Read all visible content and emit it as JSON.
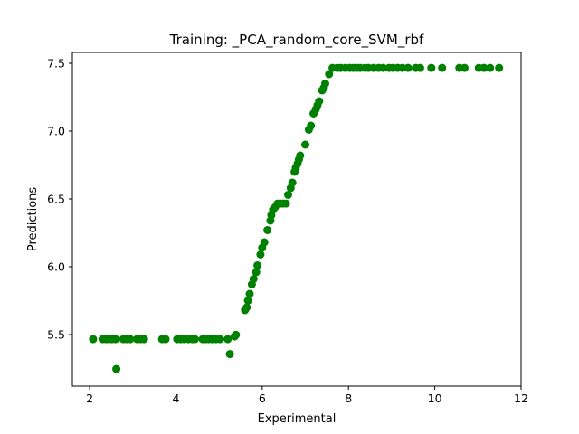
{
  "chart_data": {
    "type": "scatter",
    "title": "Training: _PCA_random_core_SVM_rbf",
    "xlabel": "Experimental",
    "ylabel": "Predictions",
    "xlim": [
      1.6,
      12.0
    ],
    "ylim": [
      5.12,
      7.58
    ],
    "xticks": [
      "2",
      "4",
      "6",
      "8",
      "10",
      "12"
    ],
    "yticks": [
      "5.5",
      "6.0",
      "6.5",
      "7.0",
      "7.5"
    ],
    "grid": false,
    "marker_color": "#008000",
    "series": [
      {
        "points": [
          [
            2.08,
            5.466
          ],
          [
            2.3,
            5.466
          ],
          [
            2.38,
            5.466
          ],
          [
            2.45,
            5.466
          ],
          [
            2.52,
            5.466
          ],
          [
            2.6,
            5.466
          ],
          [
            2.62,
            5.246
          ],
          [
            2.78,
            5.466
          ],
          [
            2.86,
            5.466
          ],
          [
            2.94,
            5.466
          ],
          [
            3.1,
            5.466
          ],
          [
            3.18,
            5.466
          ],
          [
            3.26,
            5.466
          ],
          [
            3.68,
            5.466
          ],
          [
            3.76,
            5.466
          ],
          [
            4.03,
            5.466
          ],
          [
            4.11,
            5.466
          ],
          [
            4.19,
            5.466
          ],
          [
            4.29,
            5.466
          ],
          [
            4.38,
            5.466
          ],
          [
            4.44,
            5.466
          ],
          [
            4.62,
            5.466
          ],
          [
            4.69,
            5.466
          ],
          [
            4.76,
            5.466
          ],
          [
            4.84,
            5.466
          ],
          [
            4.93,
            5.466
          ],
          [
            5.02,
            5.466
          ],
          [
            5.2,
            5.466
          ],
          [
            5.25,
            5.356
          ],
          [
            5.36,
            5.486
          ],
          [
            5.39,
            5.498
          ],
          [
            5.6,
            5.68
          ],
          [
            5.64,
            5.7
          ],
          [
            5.67,
            5.75
          ],
          [
            5.71,
            5.8
          ],
          [
            5.76,
            5.87
          ],
          [
            5.8,
            5.91
          ],
          [
            5.86,
            5.96
          ],
          [
            5.89,
            6.01
          ],
          [
            5.96,
            6.09
          ],
          [
            6.0,
            6.14
          ],
          [
            6.05,
            6.18
          ],
          [
            6.12,
            6.27
          ],
          [
            6.19,
            6.34
          ],
          [
            6.21,
            6.38
          ],
          [
            6.25,
            6.42
          ],
          [
            6.3,
            6.44
          ],
          [
            6.36,
            6.466
          ],
          [
            6.42,
            6.466
          ],
          [
            6.48,
            6.466
          ],
          [
            6.55,
            6.466
          ],
          [
            6.6,
            6.53
          ],
          [
            6.66,
            6.58
          ],
          [
            6.7,
            6.62
          ],
          [
            6.75,
            6.7
          ],
          [
            6.78,
            6.73
          ],
          [
            6.82,
            6.76
          ],
          [
            6.85,
            6.79
          ],
          [
            6.88,
            6.82
          ],
          [
            7.0,
            6.9
          ],
          [
            7.08,
            7.01
          ],
          [
            7.13,
            7.04
          ],
          [
            7.19,
            7.13
          ],
          [
            7.24,
            7.16
          ],
          [
            7.28,
            7.19
          ],
          [
            7.32,
            7.22
          ],
          [
            7.39,
            7.3
          ],
          [
            7.43,
            7.32
          ],
          [
            7.46,
            7.35
          ],
          [
            7.55,
            7.42
          ],
          [
            7.63,
            7.466
          ],
          [
            7.74,
            7.466
          ],
          [
            7.82,
            7.466
          ],
          [
            7.93,
            7.466
          ],
          [
            8.03,
            7.466
          ],
          [
            8.11,
            7.466
          ],
          [
            8.19,
            7.466
          ],
          [
            8.27,
            7.466
          ],
          [
            8.38,
            7.466
          ],
          [
            8.46,
            7.466
          ],
          [
            8.58,
            7.466
          ],
          [
            8.7,
            7.466
          ],
          [
            8.8,
            7.466
          ],
          [
            8.94,
            7.466
          ],
          [
            9.03,
            7.466
          ],
          [
            9.14,
            7.466
          ],
          [
            9.25,
            7.466
          ],
          [
            9.38,
            7.466
          ],
          [
            9.56,
            7.466
          ],
          [
            9.66,
            7.466
          ],
          [
            9.92,
            7.466
          ],
          [
            10.17,
            7.466
          ],
          [
            10.57,
            7.466
          ],
          [
            10.69,
            7.466
          ],
          [
            11.02,
            7.466
          ],
          [
            11.14,
            7.466
          ],
          [
            11.28,
            7.466
          ],
          [
            11.49,
            7.466
          ]
        ]
      }
    ]
  }
}
